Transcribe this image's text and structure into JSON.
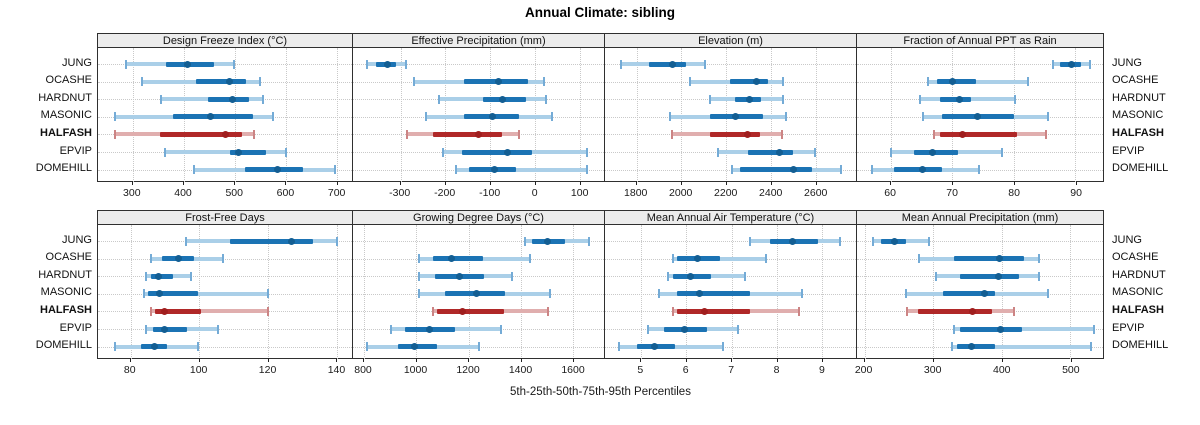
{
  "title": "Annual Climate: sibling",
  "xlabel": "5th-25th-50th-75th-95th Percentiles",
  "stations": [
    "JUNG",
    "OCASHE",
    "HARDNUT",
    "MASONIC",
    "HALFASH",
    "EPVIP",
    "DOMEHILL"
  ],
  "highlighted_station": "HALFASH",
  "percentile_labels": [
    "5th",
    "25th",
    "50th",
    "75th",
    "95th"
  ],
  "colors": {
    "blue_dark": "#1b73b4",
    "blue_light": "#aacfe8",
    "blue_cap": "#74abd6",
    "blue_dot": "#135e93",
    "red_dark": "#b02828",
    "red_light": "#e0aeae",
    "red_cap": "#cc8484",
    "red_dot": "#a01e1e",
    "strip_bg": "#ececec",
    "grid": "#c9c9c9",
    "border": "#2f2f2f"
  },
  "chart_data": [
    {
      "type": "scatter",
      "style": "percentile-range",
      "grid_position": {
        "row": 0,
        "col": 0
      },
      "title": "Design Freeze Index (°C)",
      "xlim": [
        232,
        730
      ],
      "ticks": [
        300,
        400,
        500,
        600,
        700
      ],
      "series": [
        {
          "station": "JUNG",
          "values": [
            287,
            366,
            407,
            460,
            499
          ]
        },
        {
          "station": "OCASHE",
          "values": [
            318,
            425,
            489,
            522,
            549
          ]
        },
        {
          "station": "HARDNUT",
          "values": [
            356,
            447,
            496,
            529,
            555
          ]
        },
        {
          "station": "MASONIC",
          "values": [
            265,
            380,
            452,
            535,
            576
          ]
        },
        {
          "station": "HALFASH",
          "values": [
            266,
            353,
            481,
            515,
            537
          ]
        },
        {
          "station": "EPVIP",
          "values": [
            364,
            490,
            507,
            562,
            600
          ]
        },
        {
          "station": "DOMEHILL",
          "values": [
            421,
            521,
            583,
            634,
            696
          ]
        }
      ]
    },
    {
      "type": "scatter",
      "style": "percentile-range",
      "grid_position": {
        "row": 0,
        "col": 1
      },
      "title": "Effective Precipitation (mm)",
      "xlim": [
        -406,
        154
      ],
      "ticks": [
        -300,
        -200,
        -100,
        0,
        100
      ],
      "series": [
        {
          "station": "JUNG",
          "values": [
            -374,
            -354,
            -328,
            -310,
            -287
          ]
        },
        {
          "station": "OCASHE",
          "values": [
            -270,
            -158,
            -82,
            -16,
            20
          ]
        },
        {
          "station": "HARDNUT",
          "values": [
            -215,
            -117,
            -73,
            -21,
            24
          ]
        },
        {
          "station": "MASONIC",
          "values": [
            -243,
            -158,
            -95,
            -36,
            38
          ]
        },
        {
          "station": "HALFASH",
          "values": [
            -285,
            -228,
            -126,
            -73,
            -36
          ]
        },
        {
          "station": "EPVIP",
          "values": [
            -206,
            -162,
            -62,
            -6,
            116
          ]
        },
        {
          "station": "DOMEHILL",
          "values": [
            -177,
            -147,
            -91,
            -43,
            116
          ]
        }
      ]
    },
    {
      "type": "scatter",
      "style": "percentile-range",
      "grid_position": {
        "row": 0,
        "col": 2
      },
      "title": "Elevation (m)",
      "xlim": [
        1659,
        2779
      ],
      "ticks": [
        1800,
        2000,
        2200,
        2400,
        2600
      ],
      "series": [
        {
          "station": "JUNG",
          "values": [
            1730,
            1855,
            1960,
            2020,
            2105
          ]
        },
        {
          "station": "OCASHE",
          "values": [
            2037,
            2218,
            2333,
            2388,
            2452
          ]
        },
        {
          "station": "HARDNUT",
          "values": [
            2126,
            2240,
            2302,
            2356,
            2452
          ]
        },
        {
          "station": "MASONIC",
          "values": [
            1951,
            2129,
            2240,
            2366,
            2467
          ]
        },
        {
          "station": "HALFASH",
          "values": [
            1959,
            2129,
            2296,
            2351,
            2448
          ]
        },
        {
          "station": "EPVIP",
          "values": [
            2163,
            2299,
            2437,
            2499,
            2596
          ]
        },
        {
          "station": "DOMEHILL",
          "values": [
            2225,
            2262,
            2499,
            2581,
            2714
          ]
        }
      ]
    },
    {
      "type": "scatter",
      "style": "percentile-range",
      "grid_position": {
        "row": 0,
        "col": 3
      },
      "title": "Fraction of Annual PPT as Rain",
      "xlim": [
        54.5,
        94.5
      ],
      "ticks": [
        60,
        70,
        80,
        90
      ],
      "series": [
        {
          "station": "JUNG",
          "values": [
            86.3,
            87.5,
            89.3,
            90.9,
            92.4
          ]
        },
        {
          "station": "OCASHE",
          "values": [
            66,
            67.5,
            70,
            73.8,
            82.3
          ]
        },
        {
          "station": "HARDNUT",
          "values": [
            64.8,
            68,
            71.2,
            73.1,
            80.2
          ]
        },
        {
          "station": "MASONIC",
          "values": [
            65.3,
            68.3,
            74.1,
            80,
            85.5
          ]
        },
        {
          "station": "HALFASH",
          "values": [
            67,
            68,
            71.6,
            80.5,
            85.3
          ]
        },
        {
          "station": "EPVIP",
          "values": [
            60,
            63.7,
            66.8,
            70.9,
            78.1
          ]
        },
        {
          "station": "DOMEHILL",
          "values": [
            57,
            60.5,
            65.2,
            68.3,
            74.3
          ]
        }
      ]
    },
    {
      "type": "scatter",
      "style": "percentile-range",
      "grid_position": {
        "row": 1,
        "col": 0
      },
      "title": "Frost-Free Days",
      "xlim": [
        70.5,
        144.5
      ],
      "ticks": [
        80,
        100,
        120,
        140
      ],
      "series": [
        {
          "station": "JUNG",
          "values": [
            96,
            109,
            127,
            133,
            140
          ]
        },
        {
          "station": "OCASHE",
          "values": [
            86,
            89,
            94,
            98.5,
            107
          ]
        },
        {
          "station": "HARDNUT",
          "values": [
            84.5,
            86,
            88,
            92.5,
            97.5
          ]
        },
        {
          "station": "MASONIC",
          "values": [
            84,
            85,
            88.5,
            99.5,
            120
          ]
        },
        {
          "station": "HALFASH",
          "values": [
            86,
            87,
            90,
            100.5,
            120
          ]
        },
        {
          "station": "EPVIP",
          "values": [
            84.5,
            86.5,
            90,
            96.5,
            105.5
          ]
        },
        {
          "station": "DOMEHILL",
          "values": [
            75.5,
            83,
            87,
            90.5,
            99.5
          ]
        }
      ]
    },
    {
      "type": "scatter",
      "style": "percentile-range",
      "grid_position": {
        "row": 1,
        "col": 1
      },
      "title": "Growing Degree Days (°C)",
      "xlim": [
        758,
        1718
      ],
      "ticks": [
        800,
        1000,
        1200,
        1400,
        1600
      ],
      "series": [
        {
          "station": "JUNG",
          "values": [
            1416,
            1444,
            1500,
            1570,
            1660
          ]
        },
        {
          "station": "OCASHE",
          "values": [
            1010,
            1065,
            1135,
            1255,
            1435
          ]
        },
        {
          "station": "HARDNUT",
          "values": [
            1010,
            1070,
            1165,
            1260,
            1365
          ]
        },
        {
          "station": "MASONIC",
          "values": [
            1010,
            1110,
            1230,
            1340,
            1510
          ]
        },
        {
          "station": "HALFASH",
          "values": [
            1065,
            1080,
            1175,
            1335,
            1505
          ]
        },
        {
          "station": "EPVIP",
          "values": [
            905,
            955,
            1050,
            1150,
            1325
          ]
        },
        {
          "station": "DOMEHILL",
          "values": [
            813,
            930,
            995,
            1080,
            1240
          ]
        }
      ]
    },
    {
      "type": "scatter",
      "style": "percentile-range",
      "grid_position": {
        "row": 1,
        "col": 2
      },
      "title": "Mean Annual Air Temperature (°C)",
      "xlim": [
        4.2,
        9.75
      ],
      "ticks": [
        5,
        6,
        7,
        8,
        9
      ],
      "series": [
        {
          "station": "JUNG",
          "values": [
            7.4,
            7.85,
            8.35,
            8.9,
            9.4
          ]
        },
        {
          "station": "OCASHE",
          "values": [
            5.7,
            5.8,
            6.25,
            6.75,
            7.75
          ]
        },
        {
          "station": "HARDNUT",
          "values": [
            5.6,
            5.7,
            6.1,
            6.55,
            7.3
          ]
        },
        {
          "station": "MASONIC",
          "values": [
            5.4,
            5.8,
            6.3,
            7.4,
            8.55
          ]
        },
        {
          "station": "HALFASH",
          "values": [
            5.7,
            5.8,
            6.4,
            7.4,
            8.5
          ]
        },
        {
          "station": "EPVIP",
          "values": [
            5.15,
            5.5,
            5.95,
            6.45,
            7.15
          ]
        },
        {
          "station": "DOMEHILL",
          "values": [
            4.5,
            4.9,
            5.3,
            5.75,
            6.8
          ]
        }
      ]
    },
    {
      "type": "scatter",
      "style": "percentile-range",
      "grid_position": {
        "row": 1,
        "col": 3
      },
      "title": "Mean Annual Precipitation (mm)",
      "xlim": [
        189,
        548
      ],
      "ticks": [
        200,
        300,
        400,
        500
      ],
      "series": [
        {
          "station": "JUNG",
          "values": [
            213,
            224,
            243,
            261,
            294
          ]
        },
        {
          "station": "OCASHE",
          "values": [
            280,
            330,
            397,
            433,
            455
          ]
        },
        {
          "station": "HARDNUT",
          "values": [
            305,
            340,
            395,
            425,
            455
          ]
        },
        {
          "station": "MASONIC",
          "values": [
            260,
            315,
            375,
            390,
            468
          ]
        },
        {
          "station": "HALFASH",
          "values": [
            262,
            278,
            358,
            386,
            418
          ]
        },
        {
          "station": "EPVIP",
          "values": [
            330,
            340,
            398,
            430,
            535
          ]
        },
        {
          "station": "DOMEHILL",
          "values": [
            328,
            335,
            356,
            390,
            530
          ]
        }
      ]
    }
  ]
}
